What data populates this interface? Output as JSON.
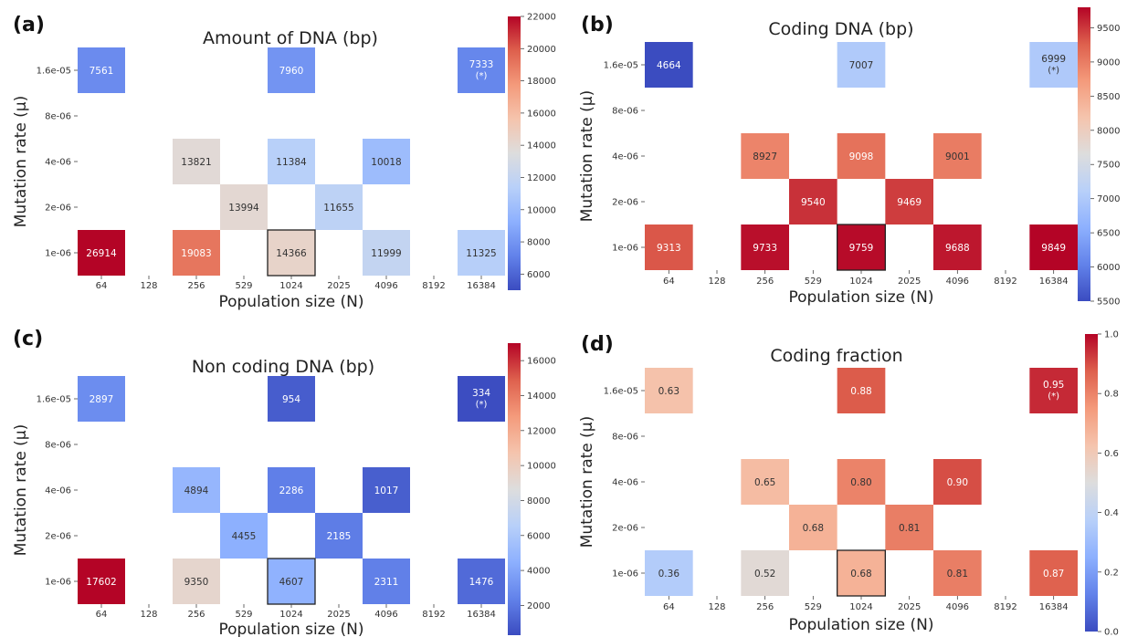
{
  "chart_data": [
    {
      "type": "heatmap",
      "panel_label": "(a)",
      "title": "Amount of DNA (bp)",
      "xlabel": "Population size (N)",
      "ylabel": "Mutation rate (μ)",
      "x_categories": [
        "64",
        "128",
        "256",
        "529",
        "1024",
        "2025",
        "4096",
        "8192",
        "16384"
      ],
      "y_categories": [
        "1.6e-05",
        "8e-06",
        "4e-06",
        "2e-06",
        "1e-06"
      ],
      "colormap": "coolwarm",
      "vmin": 5000,
      "vmax": 22000,
      "colorbar_ticks": [
        6000,
        8000,
        10000,
        12000,
        14000,
        16000,
        18000,
        20000,
        22000
      ],
      "cells": [
        {
          "x": "64",
          "y": "1.6e-05",
          "value": 7561,
          "label": "7561"
        },
        {
          "x": "1024",
          "y": "1.6e-05",
          "value": 7960,
          "label": "7960"
        },
        {
          "x": "16384",
          "y": "1.6e-05",
          "value": 7333,
          "label": "7333",
          "note": "(*)"
        },
        {
          "x": "256",
          "y": "4e-06",
          "value": 13821,
          "label": "13821"
        },
        {
          "x": "1024",
          "y": "4e-06",
          "value": 11384,
          "label": "11384"
        },
        {
          "x": "4096",
          "y": "4e-06",
          "value": 10018,
          "label": "10018"
        },
        {
          "x": "529",
          "y": "2e-06",
          "value": 13994,
          "label": "13994"
        },
        {
          "x": "2025",
          "y": "2e-06",
          "value": 11655,
          "label": "11655"
        },
        {
          "x": "64",
          "y": "1e-06",
          "value": 26914,
          "label": "26914"
        },
        {
          "x": "256",
          "y": "1e-06",
          "value": 19083,
          "label": "19083"
        },
        {
          "x": "1024",
          "y": "1e-06",
          "value": 14366,
          "label": "14366",
          "outlined": true
        },
        {
          "x": "4096",
          "y": "1e-06",
          "value": 11999,
          "label": "11999"
        },
        {
          "x": "16384",
          "y": "1e-06",
          "value": 11325,
          "label": "11325"
        }
      ]
    },
    {
      "type": "heatmap",
      "panel_label": "(b)",
      "title": "Coding DNA (bp)",
      "xlabel": "Population size (N)",
      "ylabel": "Mutation rate (μ)",
      "x_categories": [
        "64",
        "128",
        "256",
        "529",
        "1024",
        "2025",
        "4096",
        "8192",
        "16384"
      ],
      "y_categories": [
        "1.6e-05",
        "8e-06",
        "4e-06",
        "2e-06",
        "1e-06"
      ],
      "colormap": "coolwarm",
      "vmin": 5500,
      "vmax": 9800,
      "colorbar_ticks": [
        5500,
        6000,
        6500,
        7000,
        7500,
        8000,
        8500,
        9000,
        9500
      ],
      "cells": [
        {
          "x": "64",
          "y": "1.6e-05",
          "value": 4664,
          "label": "4664"
        },
        {
          "x": "1024",
          "y": "1.6e-05",
          "value": 7007,
          "label": "7007"
        },
        {
          "x": "16384",
          "y": "1.6e-05",
          "value": 6999,
          "label": "6999",
          "note": "(*)"
        },
        {
          "x": "256",
          "y": "4e-06",
          "value": 8927,
          "label": "8927"
        },
        {
          "x": "1024",
          "y": "4e-06",
          "value": 9098,
          "label": "9098"
        },
        {
          "x": "4096",
          "y": "4e-06",
          "value": 9001,
          "label": "9001"
        },
        {
          "x": "529",
          "y": "2e-06",
          "value": 9540,
          "label": "9540"
        },
        {
          "x": "2025",
          "y": "2e-06",
          "value": 9469,
          "label": "9469"
        },
        {
          "x": "64",
          "y": "1e-06",
          "value": 9313,
          "label": "9313"
        },
        {
          "x": "256",
          "y": "1e-06",
          "value": 9733,
          "label": "9733"
        },
        {
          "x": "1024",
          "y": "1e-06",
          "value": 9759,
          "label": "9759",
          "outlined": true
        },
        {
          "x": "4096",
          "y": "1e-06",
          "value": 9688,
          "label": "9688"
        },
        {
          "x": "16384",
          "y": "1e-06",
          "value": 9849,
          "label": "9849"
        }
      ]
    },
    {
      "type": "heatmap",
      "panel_label": "(c)",
      "title": "Non coding DNA (bp)",
      "xlabel": "Population size (N)",
      "ylabel": "Mutation rate (μ)",
      "x_categories": [
        "64",
        "128",
        "256",
        "529",
        "1024",
        "2025",
        "4096",
        "8192",
        "16384"
      ],
      "y_categories": [
        "1.6e-05",
        "8e-06",
        "4e-06",
        "2e-06",
        "1e-06"
      ],
      "colormap": "coolwarm",
      "vmin": 300,
      "vmax": 17000,
      "colorbar_ticks": [
        2000,
        4000,
        6000,
        8000,
        10000,
        12000,
        14000,
        16000
      ],
      "cells": [
        {
          "x": "64",
          "y": "1.6e-05",
          "value": 2897,
          "label": "2897"
        },
        {
          "x": "1024",
          "y": "1.6e-05",
          "value": 954,
          "label": "954"
        },
        {
          "x": "16384",
          "y": "1.6e-05",
          "value": 334,
          "label": "334",
          "note": "(*)"
        },
        {
          "x": "256",
          "y": "4e-06",
          "value": 4894,
          "label": "4894"
        },
        {
          "x": "1024",
          "y": "4e-06",
          "value": 2286,
          "label": "2286"
        },
        {
          "x": "4096",
          "y": "4e-06",
          "value": 1017,
          "label": "1017"
        },
        {
          "x": "529",
          "y": "2e-06",
          "value": 4455,
          "label": "4455"
        },
        {
          "x": "2025",
          "y": "2e-06",
          "value": 2185,
          "label": "2185"
        },
        {
          "x": "64",
          "y": "1e-06",
          "value": 17602,
          "label": "17602"
        },
        {
          "x": "256",
          "y": "1e-06",
          "value": 9350,
          "label": "9350"
        },
        {
          "x": "1024",
          "y": "1e-06",
          "value": 4607,
          "label": "4607",
          "outlined": true
        },
        {
          "x": "4096",
          "y": "1e-06",
          "value": 2311,
          "label": "2311"
        },
        {
          "x": "16384",
          "y": "1e-06",
          "value": 1476,
          "label": "1476"
        }
      ]
    },
    {
      "type": "heatmap",
      "panel_label": "(d)",
      "title": "Coding fraction",
      "xlabel": "Population size (N)",
      "ylabel": "Mutation rate (μ)",
      "x_categories": [
        "64",
        "128",
        "256",
        "529",
        "1024",
        "2025",
        "4096",
        "8192",
        "16384"
      ],
      "y_categories": [
        "1.6e-05",
        "8e-06",
        "4e-06",
        "2e-06",
        "1e-06"
      ],
      "colormap": "coolwarm",
      "vmin": 0.0,
      "vmax": 1.0,
      "colorbar_ticks": [
        0.0,
        0.2,
        0.4,
        0.6,
        0.8,
        1.0
      ],
      "colorbar_tick_labels": [
        "0.0",
        "0.2",
        "0.4",
        "0.6",
        "0.8",
        "1.0"
      ],
      "cells": [
        {
          "x": "64",
          "y": "1.6e-05",
          "value": 0.63,
          "label": "0.63"
        },
        {
          "x": "1024",
          "y": "1.6e-05",
          "value": 0.88,
          "label": "0.88"
        },
        {
          "x": "16384",
          "y": "1.6e-05",
          "value": 0.95,
          "label": "0.95",
          "note": "(*)"
        },
        {
          "x": "256",
          "y": "4e-06",
          "value": 0.65,
          "label": "0.65"
        },
        {
          "x": "1024",
          "y": "4e-06",
          "value": 0.8,
          "label": "0.80"
        },
        {
          "x": "4096",
          "y": "4e-06",
          "value": 0.9,
          "label": "0.90"
        },
        {
          "x": "529",
          "y": "2e-06",
          "value": 0.68,
          "label": "0.68"
        },
        {
          "x": "2025",
          "y": "2e-06",
          "value": 0.81,
          "label": "0.81"
        },
        {
          "x": "64",
          "y": "1e-06",
          "value": 0.36,
          "label": "0.36"
        },
        {
          "x": "256",
          "y": "1e-06",
          "value": 0.52,
          "label": "0.52"
        },
        {
          "x": "1024",
          "y": "1e-06",
          "value": 0.68,
          "label": "0.68",
          "outlined": true
        },
        {
          "x": "4096",
          "y": "1e-06",
          "value": 0.81,
          "label": "0.81"
        },
        {
          "x": "16384",
          "y": "1e-06",
          "value": 0.87,
          "label": "0.87"
        }
      ]
    }
  ]
}
